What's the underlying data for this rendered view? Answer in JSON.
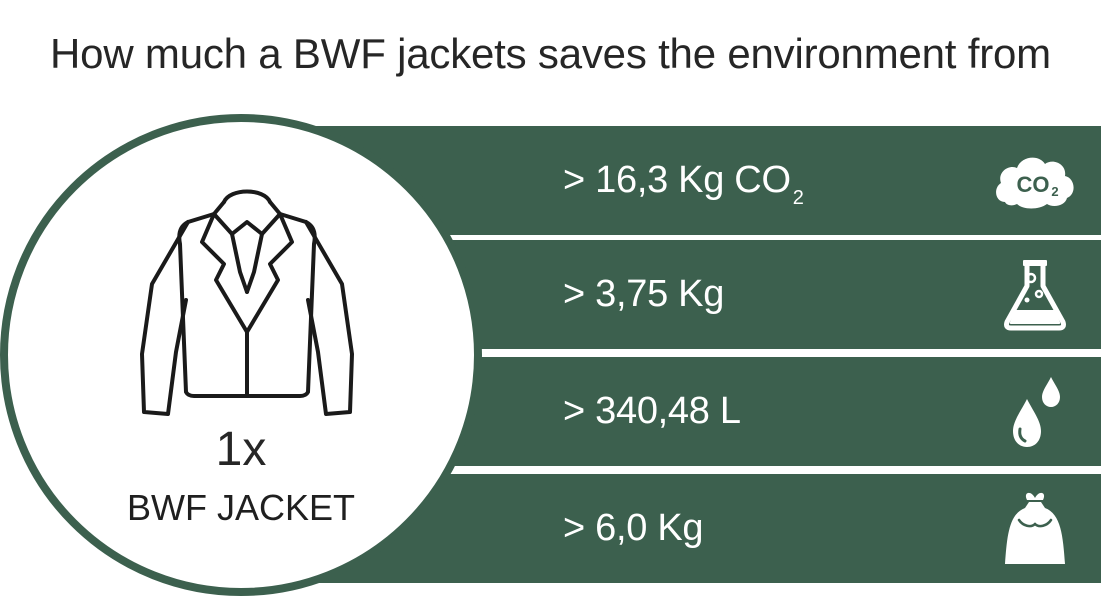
{
  "title": "How much a BWF jackets saves the environment from",
  "product": {
    "quantity": "1x",
    "name": "BWF JACKET",
    "icon": "jacket-icon"
  },
  "stats": [
    {
      "value": "> 16,3 Kg CO",
      "subscript": "2",
      "icon": "co2-cloud-icon",
      "icon_text": "CO",
      "icon_sub": "2"
    },
    {
      "value": "> 3,75 Kg",
      "icon": "chemical-flask-icon"
    },
    {
      "value": "> 340,48 L",
      "icon": "water-drops-icon"
    },
    {
      "value": "> 6,0 Kg",
      "icon": "waste-bag-icon"
    }
  ],
  "colors": {
    "band": "#3c604e",
    "text_dark": "#262626",
    "text_light": "#ffffff"
  }
}
